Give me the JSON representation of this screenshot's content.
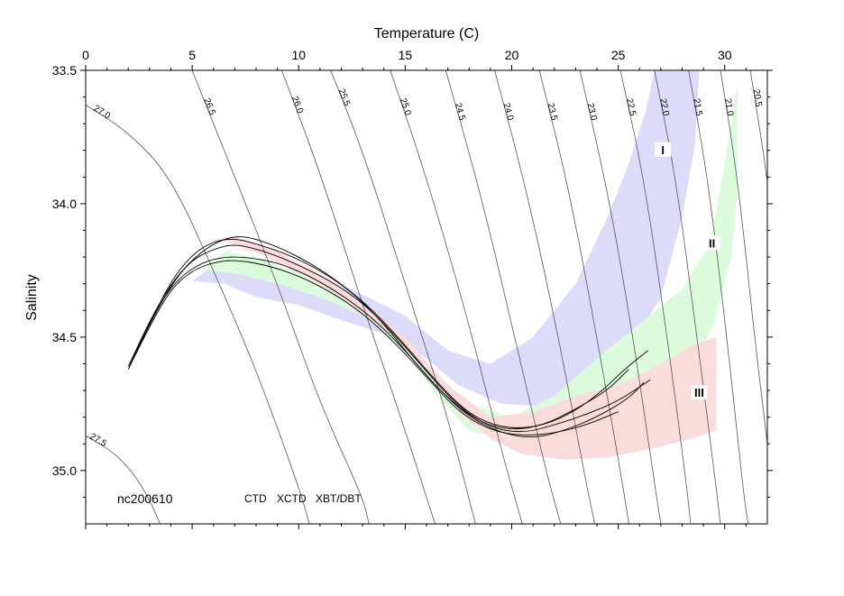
{
  "chart_data": {
    "type": "scatter",
    "title": "",
    "xlabel": "Temperature (C)",
    "ylabel": "Salinity",
    "xlim": [
      0,
      32
    ],
    "ylim": [
      35.2,
      33.5
    ],
    "y_axis_inverted": true,
    "x_axis_position": "top",
    "x_ticks": [
      0,
      5,
      10,
      15,
      20,
      25,
      30
    ],
    "x_tick_labels": [
      "0",
      "5",
      "10",
      "15",
      "20",
      "25",
      "30"
    ],
    "y_ticks": [
      33.5,
      34.0,
      34.5,
      35.0
    ],
    "y_tick_labels": [
      "33.5",
      "34.0",
      "34.5",
      "35.0"
    ],
    "grid": false,
    "annotation_station": "nc200610",
    "legend": [
      {
        "label": "CTD",
        "color": "#000000"
      },
      {
        "label": "XCTD",
        "color": "#00cc00"
      },
      {
        "label": "XBT/DBT",
        "color": "#cc0000"
      }
    ],
    "isopycnals": [
      {
        "label": "27.5",
        "points": [
          [
            0,
            34.87
          ],
          [
            1.5,
            34.94
          ],
          [
            2.7,
            35.06
          ],
          [
            3.5,
            35.2
          ]
        ]
      },
      {
        "label": "27.0",
        "points": [
          [
            0,
            33.63
          ],
          [
            2,
            33.73
          ],
          [
            4,
            33.9
          ],
          [
            6,
            34.25
          ],
          [
            8,
            34.62
          ],
          [
            10,
            35.06
          ],
          [
            10.5,
            35.2
          ]
        ]
      },
      {
        "label": "26.5",
        "points": [
          [
            5,
            33.5
          ],
          [
            7,
            33.9
          ],
          [
            9,
            34.3
          ],
          [
            11,
            34.75
          ],
          [
            13,
            35.1
          ],
          [
            13.3,
            35.2
          ]
        ]
      },
      {
        "label": "26.0",
        "points": [
          [
            9.2,
            33.5
          ],
          [
            11,
            33.88
          ],
          [
            13,
            34.38
          ],
          [
            15,
            34.85
          ],
          [
            16.4,
            35.2
          ]
        ]
      },
      {
        "label": "25.5",
        "points": [
          [
            11.5,
            33.5
          ],
          [
            13,
            33.8
          ],
          [
            15,
            34.3
          ],
          [
            17,
            34.8
          ],
          [
            18.3,
            35.2
          ]
        ]
      },
      {
        "label": "25.0",
        "points": [
          [
            14.3,
            33.5
          ],
          [
            16,
            33.9
          ],
          [
            18,
            34.45
          ],
          [
            19.6,
            34.95
          ],
          [
            20.5,
            35.2
          ]
        ]
      },
      {
        "label": "24.5",
        "points": [
          [
            16.9,
            33.5
          ],
          [
            18.5,
            33.95
          ],
          [
            20,
            34.45
          ],
          [
            21.6,
            35.0
          ],
          [
            22.3,
            35.2
          ]
        ]
      },
      {
        "label": "24.0",
        "points": [
          [
            19.2,
            33.5
          ],
          [
            20.7,
            33.95
          ],
          [
            22.2,
            34.5
          ],
          [
            23.5,
            35.05
          ],
          [
            23.9,
            35.2
          ]
        ]
      },
      {
        "label": "23.5",
        "points": [
          [
            21.3,
            33.5
          ],
          [
            22.7,
            33.95
          ],
          [
            24,
            34.5
          ],
          [
            25.2,
            35.05
          ],
          [
            25.5,
            35.2
          ]
        ]
      },
      {
        "label": "23.0",
        "points": [
          [
            23.2,
            33.5
          ],
          [
            24.5,
            33.95
          ],
          [
            25.7,
            34.5
          ],
          [
            26.7,
            35.05
          ],
          [
            27.0,
            35.2
          ]
        ]
      },
      {
        "label": "22.5",
        "points": [
          [
            25.1,
            33.5
          ],
          [
            26.2,
            33.9
          ],
          [
            27.3,
            34.5
          ],
          [
            28.2,
            35.05
          ],
          [
            28.4,
            35.2
          ]
        ]
      },
      {
        "label": "22.0",
        "points": [
          [
            26.7,
            33.5
          ],
          [
            27.7,
            33.9
          ],
          [
            28.7,
            34.5
          ],
          [
            29.5,
            35.0
          ],
          [
            29.8,
            35.2
          ]
        ]
      },
      {
        "label": "21.5",
        "points": [
          [
            28.3,
            33.5
          ],
          [
            29.2,
            33.9
          ],
          [
            30.1,
            34.5
          ],
          [
            30.9,
            35.1
          ],
          [
            31.1,
            35.2
          ]
        ]
      },
      {
        "label": "21.0",
        "points": [
          [
            29.8,
            33.5
          ],
          [
            30.6,
            33.9
          ],
          [
            31.4,
            34.5
          ],
          [
            32.0,
            34.9
          ]
        ]
      },
      {
        "label": "20.5",
        "points": [
          [
            31.2,
            33.5
          ],
          [
            31.8,
            33.8
          ],
          [
            32.0,
            33.92
          ]
        ]
      }
    ],
    "regions": [
      {
        "label": "I",
        "color": "#dcdcfa",
        "label_at": [
          27.1,
          33.8
        ],
        "polygon": [
          [
            26.7,
            33.5
          ],
          [
            28.8,
            33.5
          ],
          [
            28.6,
            33.78
          ],
          [
            28.0,
            34.05
          ],
          [
            27.0,
            34.35
          ],
          [
            25.5,
            34.55
          ],
          [
            23.5,
            34.68
          ],
          [
            21.5,
            34.76
          ],
          [
            19.5,
            34.75
          ],
          [
            17.5,
            34.68
          ],
          [
            16,
            34.58
          ],
          [
            14.5,
            34.5
          ],
          [
            12.5,
            34.45
          ],
          [
            10,
            34.38
          ],
          [
            8,
            34.35
          ],
          [
            6.5,
            34.3
          ],
          [
            5,
            34.29
          ],
          [
            6.2,
            34.22
          ],
          [
            8,
            34.22
          ],
          [
            10,
            34.25
          ],
          [
            12.5,
            34.32
          ],
          [
            15,
            34.42
          ],
          [
            17,
            34.55
          ],
          [
            19,
            34.6
          ],
          [
            21,
            34.5
          ],
          [
            23,
            34.3
          ],
          [
            24.5,
            34.05
          ],
          [
            25.5,
            33.85
          ],
          [
            26.3,
            33.65
          ]
        ]
      },
      {
        "label": "II",
        "color": "#dcfadc",
        "label_at": [
          29.4,
          34.15
        ],
        "polygon": [
          [
            30.6,
            33.55
          ],
          [
            30.6,
            33.95
          ],
          [
            30.3,
            34.2
          ],
          [
            29.5,
            34.45
          ],
          [
            28.5,
            34.6
          ],
          [
            27,
            34.7
          ],
          [
            25,
            34.77
          ],
          [
            23,
            34.83
          ],
          [
            21,
            34.87
          ],
          [
            19.5,
            34.88
          ],
          [
            18,
            34.85
          ],
          [
            16.5,
            34.72
          ],
          [
            15,
            34.55
          ],
          [
            13,
            34.42
          ],
          [
            11,
            34.35
          ],
          [
            9,
            34.3
          ],
          [
            7,
            34.26
          ],
          [
            5.5,
            34.25
          ],
          [
            6.5,
            34.18
          ],
          [
            8,
            34.2
          ],
          [
            10,
            34.26
          ],
          [
            12,
            34.34
          ],
          [
            14,
            34.46
          ],
          [
            16,
            34.6
          ],
          [
            18,
            34.75
          ],
          [
            20,
            34.8
          ],
          [
            22,
            34.72
          ],
          [
            24,
            34.58
          ],
          [
            26,
            34.45
          ],
          [
            28,
            34.32
          ],
          [
            29.3,
            34.15
          ],
          [
            30,
            33.85
          ]
        ]
      },
      {
        "label": "III",
        "color": "#fadcdc",
        "label_at": [
          28.8,
          34.71
        ],
        "polygon": [
          [
            29.6,
            34.5
          ],
          [
            29.6,
            34.85
          ],
          [
            28.5,
            34.88
          ],
          [
            26.5,
            34.92
          ],
          [
            24.5,
            34.95
          ],
          [
            22.5,
            34.96
          ],
          [
            20.5,
            34.94
          ],
          [
            19,
            34.88
          ],
          [
            17.5,
            34.78
          ],
          [
            16,
            34.63
          ],
          [
            14.5,
            34.5
          ],
          [
            12.5,
            34.38
          ],
          [
            10.5,
            34.28
          ],
          [
            8.5,
            34.2
          ],
          [
            6.5,
            34.14
          ],
          [
            5.7,
            34.14
          ],
          [
            7,
            34.12
          ],
          [
            9,
            34.18
          ],
          [
            11,
            34.26
          ],
          [
            13,
            34.37
          ],
          [
            15,
            34.5
          ],
          [
            17,
            34.68
          ],
          [
            19,
            34.8
          ],
          [
            21,
            34.78
          ],
          [
            23,
            34.72
          ],
          [
            25,
            34.68
          ],
          [
            27,
            34.6
          ],
          [
            28.5,
            34.53
          ]
        ]
      }
    ],
    "ctd_profiles": [
      [
        [
          2.0,
          34.62
        ],
        [
          3.0,
          34.45
        ],
        [
          4.0,
          34.29
        ],
        [
          5.0,
          34.19
        ],
        [
          6.0,
          34.14
        ],
        [
          7.0,
          34.13
        ],
        [
          8.0,
          34.15
        ],
        [
          9.5,
          34.19
        ],
        [
          11,
          34.25
        ],
        [
          12.5,
          34.33
        ],
        [
          14,
          34.45
        ],
        [
          15.5,
          34.6
        ],
        [
          17,
          34.73
        ],
        [
          18.5,
          34.82
        ],
        [
          20,
          34.85
        ],
        [
          21.5,
          34.83
        ],
        [
          23,
          34.77
        ],
        [
          24.5,
          34.7
        ],
        [
          25.5,
          34.62
        ]
      ],
      [
        [
          2.0,
          34.61
        ],
        [
          3.0,
          34.44
        ],
        [
          4.0,
          34.3
        ],
        [
          5.0,
          34.21
        ],
        [
          6.0,
          34.17
        ],
        [
          7.0,
          34.15
        ],
        [
          8.5,
          34.18
        ],
        [
          10,
          34.23
        ],
        [
          11.5,
          34.29
        ],
        [
          13,
          34.37
        ],
        [
          14.5,
          34.49
        ],
        [
          16,
          34.63
        ],
        [
          17.5,
          34.76
        ],
        [
          19,
          34.84
        ],
        [
          20.5,
          34.86
        ],
        [
          22,
          34.83
        ],
        [
          23.5,
          34.79
        ],
        [
          25,
          34.74
        ],
        [
          26.5,
          34.66
        ]
      ],
      [
        [
          2.1,
          34.6
        ],
        [
          3.1,
          34.43
        ],
        [
          4.1,
          34.3
        ],
        [
          5.2,
          34.23
        ],
        [
          6.3,
          34.2
        ],
        [
          7.5,
          34.2
        ],
        [
          9,
          34.22
        ],
        [
          10.5,
          34.27
        ],
        [
          12,
          34.34
        ],
        [
          13.5,
          34.43
        ],
        [
          15,
          34.55
        ],
        [
          16.5,
          34.69
        ],
        [
          18,
          34.8
        ],
        [
          19.5,
          34.86
        ],
        [
          21,
          34.88
        ],
        [
          22.5,
          34.85
        ],
        [
          24,
          34.8
        ],
        [
          25.5,
          34.73
        ],
        [
          26.2,
          34.67
        ]
      ],
      [
        [
          2.0,
          34.62
        ],
        [
          3.0,
          34.46
        ],
        [
          4.0,
          34.32
        ],
        [
          5.0,
          34.25
        ],
        [
          6.0,
          34.22
        ],
        [
          7.0,
          34.21
        ],
        [
          8.5,
          34.23
        ],
        [
          10,
          34.27
        ],
        [
          11.5,
          34.33
        ],
        [
          13,
          34.41
        ],
        [
          14.5,
          34.52
        ],
        [
          16,
          34.65
        ],
        [
          17.5,
          34.78
        ],
        [
          19,
          34.85
        ],
        [
          20.5,
          34.87
        ],
        [
          22,
          34.86
        ],
        [
          23.5,
          34.83
        ],
        [
          25,
          34.78
        ]
      ],
      [
        [
          2.1,
          34.6
        ],
        [
          3.2,
          34.42
        ],
        [
          4.3,
          34.27
        ],
        [
          5.4,
          34.18
        ],
        [
          6.5,
          34.13
        ],
        [
          7.5,
          34.12
        ],
        [
          9,
          34.16
        ],
        [
          10.5,
          34.22
        ],
        [
          12,
          34.3
        ],
        [
          13.5,
          34.4
        ],
        [
          15,
          34.53
        ],
        [
          16.5,
          34.67
        ],
        [
          18,
          34.79
        ],
        [
          19.5,
          34.84
        ],
        [
          21,
          34.84
        ],
        [
          22.5,
          34.8
        ],
        [
          24,
          34.72
        ],
        [
          25.3,
          34.62
        ],
        [
          26.4,
          34.55
        ]
      ]
    ]
  }
}
